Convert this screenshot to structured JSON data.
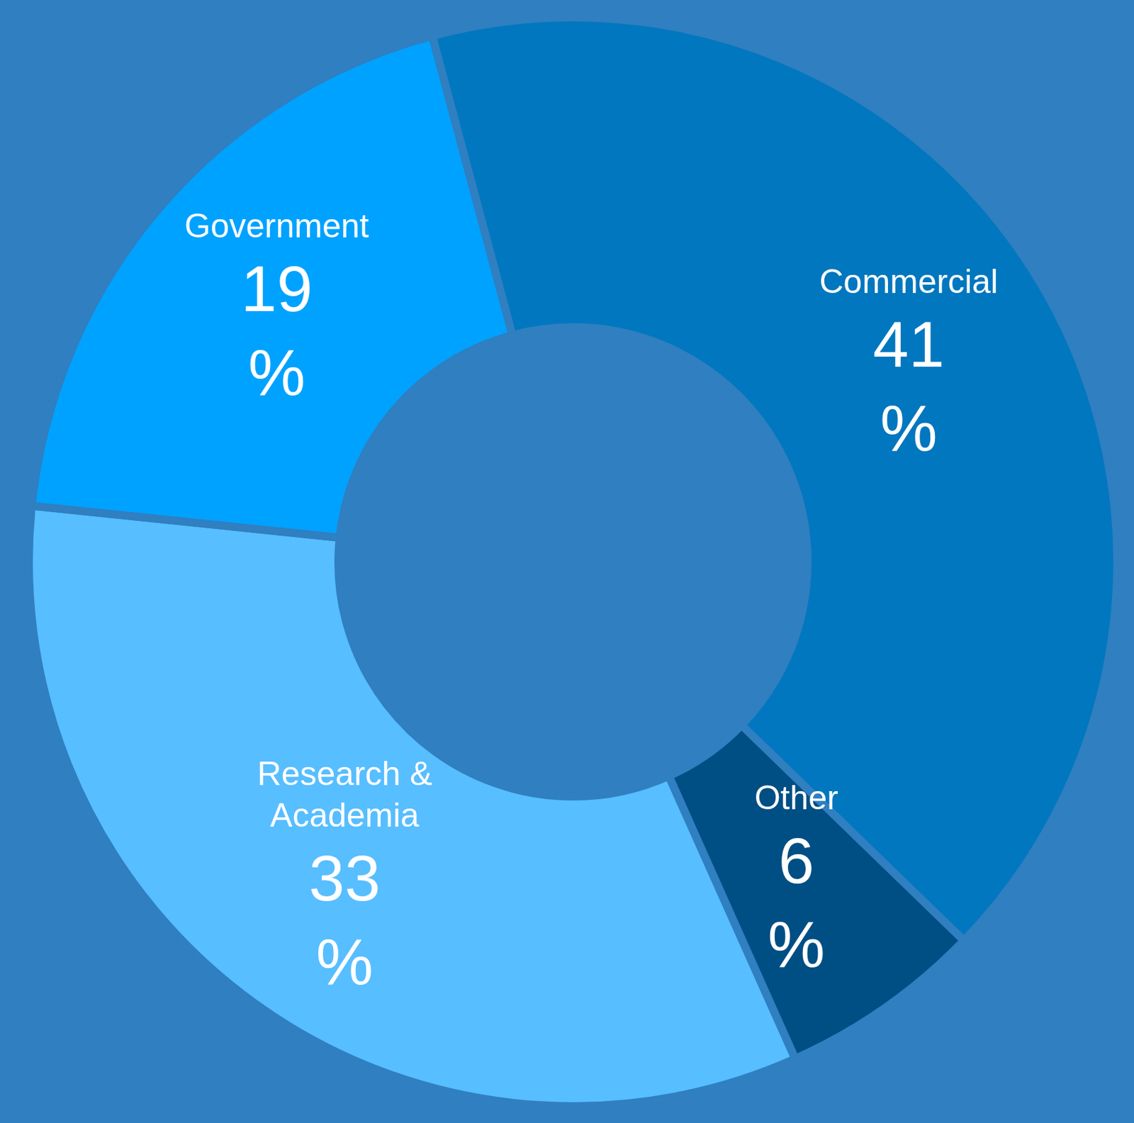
{
  "chart_data": {
    "type": "pie",
    "categories": [
      "Commercial",
      "Other",
      "Research & Academia",
      "Government"
    ],
    "values": [
      41,
      6,
      33,
      19
    ],
    "value_labels": [
      "41%",
      "6%",
      "33%",
      "19%"
    ],
    "colors": [
      "#0077be",
      "#004f84",
      "#57beff",
      "#00a2ff"
    ],
    "data_labels": true
  }
}
